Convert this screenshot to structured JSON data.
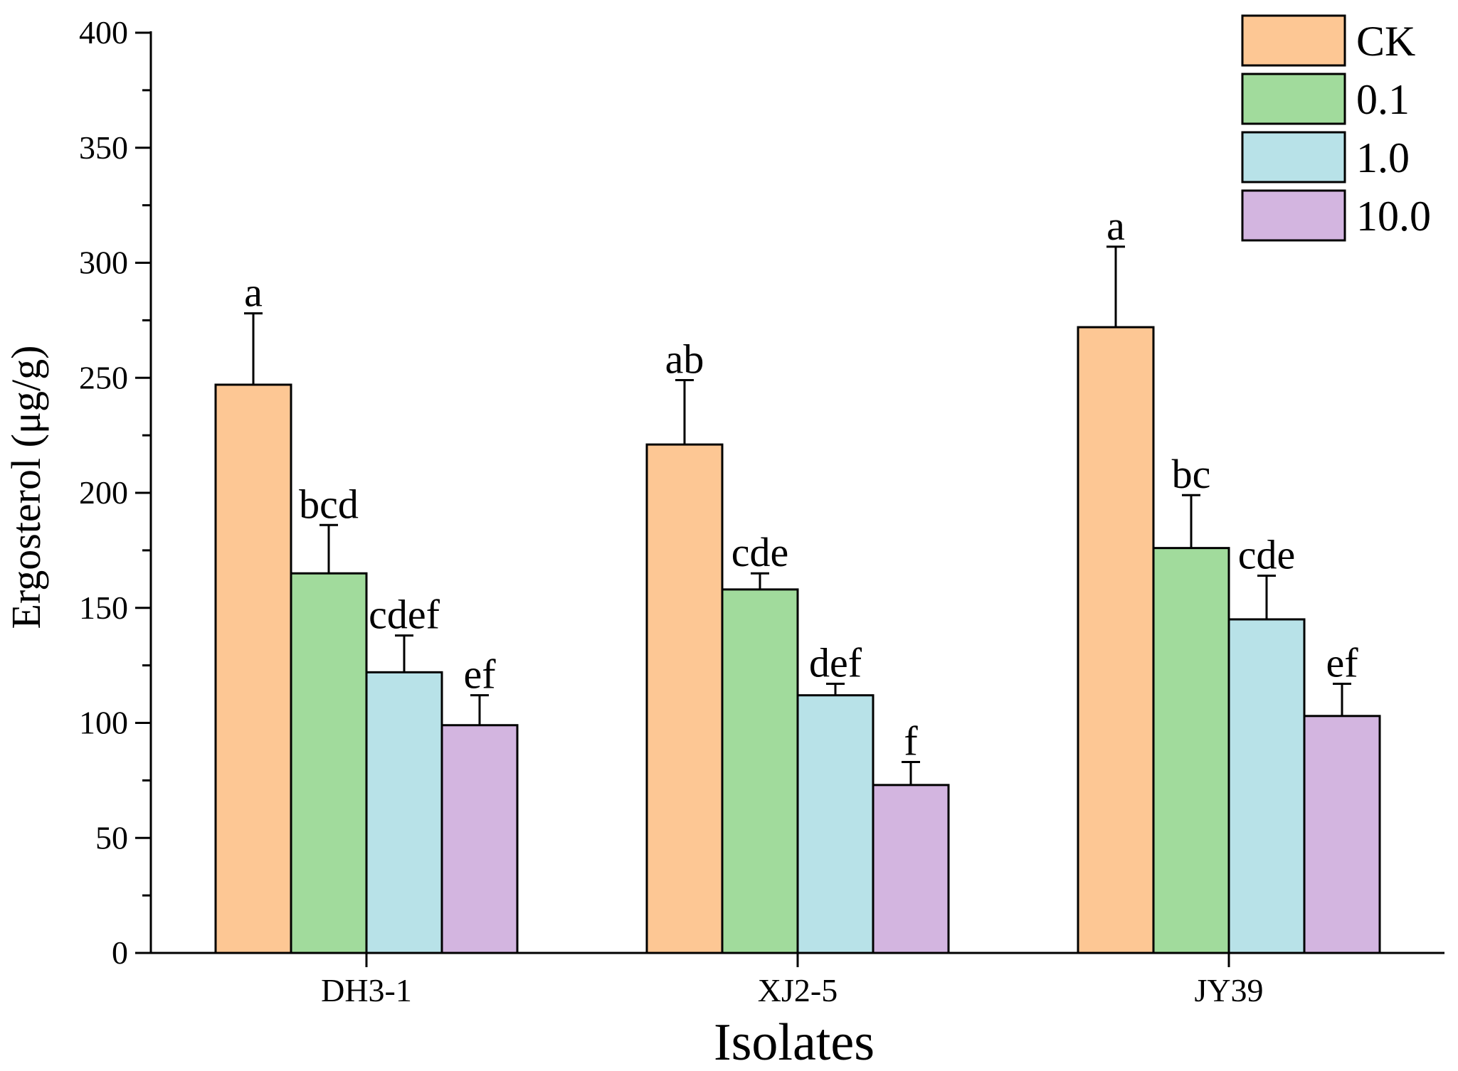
{
  "chart_data": {
    "type": "bar",
    "title": "",
    "xlabel": "Isolates",
    "ylabel": "Ergosterol (μg/g)",
    "ylim": [
      0,
      400
    ],
    "yticks": [
      0,
      50,
      100,
      150,
      200,
      250,
      300,
      350,
      400
    ],
    "yminor_step": 25,
    "grid": false,
    "legend_position": "top-right",
    "categories": [
      "DH3-1",
      "XJ2-5",
      "JY39"
    ],
    "series": [
      {
        "name": "CK",
        "color": "#FDC794",
        "values": [
          247,
          221,
          272
        ],
        "errors": [
          31,
          28,
          35
        ],
        "labels": [
          "a",
          "ab",
          "a"
        ]
      },
      {
        "name": "0.1",
        "color": "#A1DB9C",
        "values": [
          165,
          158,
          176
        ],
        "errors": [
          21,
          7,
          23
        ],
        "labels": [
          "bcd",
          "cde",
          "bc"
        ]
      },
      {
        "name": "1.0",
        "color": "#B8E2E8",
        "values": [
          122,
          112,
          145
        ],
        "errors": [
          16,
          5,
          19
        ],
        "labels": [
          "cdef",
          "def",
          "cde"
        ]
      },
      {
        "name": "10.0",
        "color": "#D3B5E0",
        "values": [
          99,
          73,
          103
        ],
        "errors": [
          13,
          10,
          14
        ],
        "labels": [
          "ef",
          "f",
          "ef"
        ]
      }
    ]
  }
}
